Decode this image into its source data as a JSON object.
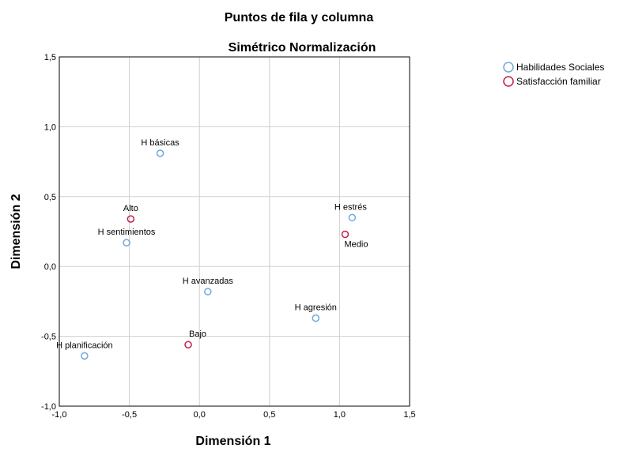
{
  "chart_data": {
    "type": "scatter",
    "title": "Puntos de fila y columna",
    "subtitle": "Simétrico Normalización",
    "xlabel": "Dimensión 1",
    "ylabel": "Dimensión 2",
    "xlim": [
      -1.0,
      1.5
    ],
    "ylim": [
      -1.0,
      1.5
    ],
    "xticks": [
      "-1,0",
      "-0,5",
      "0,0",
      "0,5",
      "1,0",
      "1,5"
    ],
    "yticks": [
      "-1,0",
      "-0,5",
      "0,0",
      "0,5",
      "1,0",
      "1,5"
    ],
    "grid": true,
    "legend_position": "top-right",
    "series": [
      {
        "name": "Habilidades Sociales",
        "color": "#6fa8dc",
        "points": [
          {
            "label": "H básicas",
            "x": -0.28,
            "y": 0.81
          },
          {
            "label": "H sentimientos",
            "x": -0.52,
            "y": 0.17
          },
          {
            "label": "H avanzadas",
            "x": 0.06,
            "y": -0.18
          },
          {
            "label": "H planificación",
            "x": -0.82,
            "y": -0.64
          },
          {
            "label": "H estrés",
            "x": 1.09,
            "y": 0.35
          },
          {
            "label": "H agresión",
            "x": 0.83,
            "y": -0.37
          }
        ]
      },
      {
        "name": "Satisfacción familiar",
        "color": "#c41e4a",
        "points": [
          {
            "label": "Alto",
            "x": -0.49,
            "y": 0.34
          },
          {
            "label": "Medio",
            "x": 1.04,
            "y": 0.23
          },
          {
            "label": "Bajo",
            "x": -0.08,
            "y": -0.56
          }
        ]
      }
    ]
  }
}
